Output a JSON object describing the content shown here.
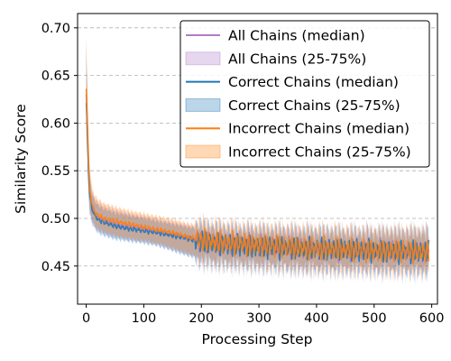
{
  "chart_data": {
    "type": "line",
    "title": "",
    "xlabel": "Processing Step",
    "ylabel": "Similarity Score",
    "xlim": [
      -15,
      610
    ],
    "ylim": [
      0.41,
      0.715
    ],
    "xticks": [
      0,
      100,
      200,
      300,
      400,
      500,
      600
    ],
    "yticks": [
      0.45,
      0.5,
      0.55,
      0.6,
      0.65,
      0.7
    ],
    "xtick_labels": [
      "0",
      "100",
      "200",
      "300",
      "400",
      "500",
      "600"
    ],
    "ytick_labels": [
      "0.45",
      "0.50",
      "0.55",
      "0.60",
      "0.65",
      "0.70"
    ],
    "grid": "y-dashed",
    "legend_position": "top-right",
    "legend": [
      {
        "label": "All Chains (median)",
        "kind": "line",
        "color": "#b07cc6"
      },
      {
        "label": "All Chains (25-75%)",
        "kind": "band",
        "color": "#b07cc6"
      },
      {
        "label": "Correct Chains (median)",
        "kind": "line",
        "color": "#1f77b4"
      },
      {
        "label": "Correct Chains (25-75%)",
        "kind": "band",
        "color": "#1f77b4"
      },
      {
        "label": "Incorrect Chains (median)",
        "kind": "line",
        "color": "#ff7f0e"
      },
      {
        "label": "Incorrect Chains (25-75%)",
        "kind": "band",
        "color": "#ff7f0e"
      }
    ],
    "series": [
      {
        "name": "Correct Chains (median)",
        "color": "#1f77b4",
        "x": [
          0,
          2,
          4,
          6,
          10,
          15,
          20,
          30,
          50,
          75,
          100,
          125,
          150,
          175,
          200,
          225,
          250,
          275,
          300,
          325,
          350,
          375,
          400,
          425,
          450,
          475,
          500,
          525,
          550,
          575,
          595
        ],
        "y": [
          0.62,
          0.59,
          0.55,
          0.525,
          0.51,
          0.503,
          0.499,
          0.496,
          0.492,
          0.489,
          0.487,
          0.485,
          0.482,
          0.479,
          0.475,
          0.473,
          0.472,
          0.471,
          0.47,
          0.47,
          0.469,
          0.468,
          0.468,
          0.467,
          0.467,
          0.466,
          0.466,
          0.466,
          0.465,
          0.465,
          0.465
        ],
        "q25": [
          0.585,
          0.56,
          0.525,
          0.505,
          0.495,
          0.489,
          0.485,
          0.482,
          0.478,
          0.476,
          0.474,
          0.471,
          0.466,
          0.461,
          0.457,
          0.455,
          0.454,
          0.453,
          0.452,
          0.452,
          0.451,
          0.45,
          0.45,
          0.449,
          0.449,
          0.449,
          0.448,
          0.448,
          0.447,
          0.447,
          0.447
        ],
        "q75": [
          0.68,
          0.625,
          0.575,
          0.545,
          0.525,
          0.518,
          0.514,
          0.51,
          0.506,
          0.503,
          0.5,
          0.497,
          0.494,
          0.491,
          0.489,
          0.487,
          0.486,
          0.485,
          0.485,
          0.484,
          0.484,
          0.483,
          0.483,
          0.483,
          0.482,
          0.482,
          0.482,
          0.482,
          0.482,
          0.482,
          0.482
        ]
      },
      {
        "name": "Incorrect Chains (median)",
        "color": "#ff7f0e",
        "x": [
          0,
          2,
          4,
          6,
          10,
          15,
          20,
          30,
          50,
          75,
          100,
          125,
          150,
          175,
          200,
          225,
          250,
          275,
          300,
          325,
          350,
          375,
          400,
          425,
          450,
          475,
          500,
          525,
          550,
          575,
          595
        ],
        "y": [
          0.635,
          0.6,
          0.56,
          0.53,
          0.515,
          0.507,
          0.503,
          0.5,
          0.497,
          0.494,
          0.491,
          0.488,
          0.485,
          0.481,
          0.477,
          0.475,
          0.474,
          0.473,
          0.472,
          0.471,
          0.47,
          0.469,
          0.468,
          0.468,
          0.467,
          0.467,
          0.466,
          0.466,
          0.466,
          0.465,
          0.465
        ],
        "q25": [
          0.6,
          0.57,
          0.535,
          0.51,
          0.5,
          0.493,
          0.489,
          0.486,
          0.482,
          0.479,
          0.477,
          0.474,
          0.469,
          0.464,
          0.459,
          0.457,
          0.456,
          0.455,
          0.454,
          0.453,
          0.452,
          0.451,
          0.45,
          0.45,
          0.449,
          0.449,
          0.449,
          0.448,
          0.448,
          0.448,
          0.447
        ],
        "q75": [
          0.695,
          0.64,
          0.59,
          0.555,
          0.532,
          0.524,
          0.52,
          0.516,
          0.512,
          0.508,
          0.505,
          0.502,
          0.499,
          0.495,
          0.492,
          0.49,
          0.489,
          0.488,
          0.487,
          0.487,
          0.486,
          0.486,
          0.485,
          0.485,
          0.485,
          0.484,
          0.484,
          0.484,
          0.484,
          0.484,
          0.484
        ]
      },
      {
        "name": "All Chains (median)",
        "color": "#b07cc6",
        "x": [
          0,
          2,
          4,
          6,
          10,
          15,
          20,
          30,
          50,
          75,
          100,
          125,
          150,
          175,
          200,
          225,
          250,
          275,
          300,
          325,
          350,
          375,
          400,
          425,
          450,
          475,
          500,
          525,
          550,
          575,
          595
        ],
        "y": [
          0.628,
          0.595,
          0.555,
          0.527,
          0.512,
          0.505,
          0.501,
          0.498,
          0.494,
          0.491,
          0.489,
          0.486,
          0.483,
          0.48,
          0.476,
          0.474,
          0.473,
          0.472,
          0.471,
          0.47,
          0.47,
          0.469,
          0.468,
          0.467,
          0.467,
          0.466,
          0.466,
          0.466,
          0.465,
          0.465,
          0.465
        ],
        "q25": [
          0.592,
          0.565,
          0.53,
          0.507,
          0.497,
          0.491,
          0.487,
          0.484,
          0.48,
          0.477,
          0.475,
          0.472,
          0.467,
          0.462,
          0.458,
          0.456,
          0.455,
          0.454,
          0.453,
          0.452,
          0.451,
          0.45,
          0.45,
          0.449,
          0.449,
          0.449,
          0.448,
          0.448,
          0.448,
          0.447,
          0.447
        ],
        "q75": [
          0.69,
          0.632,
          0.583,
          0.55,
          0.528,
          0.521,
          0.517,
          0.513,
          0.509,
          0.505,
          0.502,
          0.499,
          0.496,
          0.493,
          0.49,
          0.488,
          0.487,
          0.486,
          0.486,
          0.485,
          0.485,
          0.484,
          0.484,
          0.484,
          0.483,
          0.483,
          0.483,
          0.483,
          0.483,
          0.483,
          0.483
        ]
      }
    ]
  }
}
